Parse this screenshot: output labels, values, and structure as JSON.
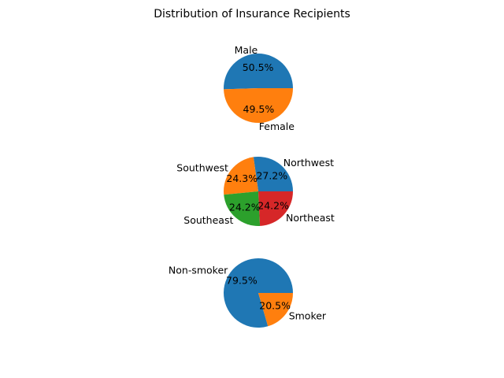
{
  "chart_data": [
    {
      "type": "pie",
      "title": "Distribution of Insurance Recipients",
      "labels": [
        "Male",
        "Female"
      ],
      "values": [
        50.5,
        49.5
      ],
      "value_labels": [
        "50.5%",
        "49.5%"
      ],
      "colors": [
        "#1f77b4",
        "#ff7f0e"
      ],
      "start_angle": 0
    },
    {
      "type": "pie",
      "title": "",
      "labels": [
        "Northwest",
        "Southwest",
        "Southeast",
        "Northeast"
      ],
      "values": [
        27.2,
        24.3,
        24.2,
        24.2
      ],
      "value_labels": [
        "27.2%",
        "24.3%",
        "24.2%",
        "24.2%"
      ],
      "colors": [
        "#1f77b4",
        "#ff7f0e",
        "#2ca02c",
        "#d62728"
      ],
      "start_angle": 0
    },
    {
      "type": "pie",
      "title": "",
      "labels": [
        "Non-smoker",
        "Smoker"
      ],
      "values": [
        79.5,
        20.5
      ],
      "value_labels": [
        "79.5%",
        "20.5%"
      ],
      "colors": [
        "#1f77b4",
        "#ff7f0e"
      ],
      "start_angle": 0
    }
  ]
}
